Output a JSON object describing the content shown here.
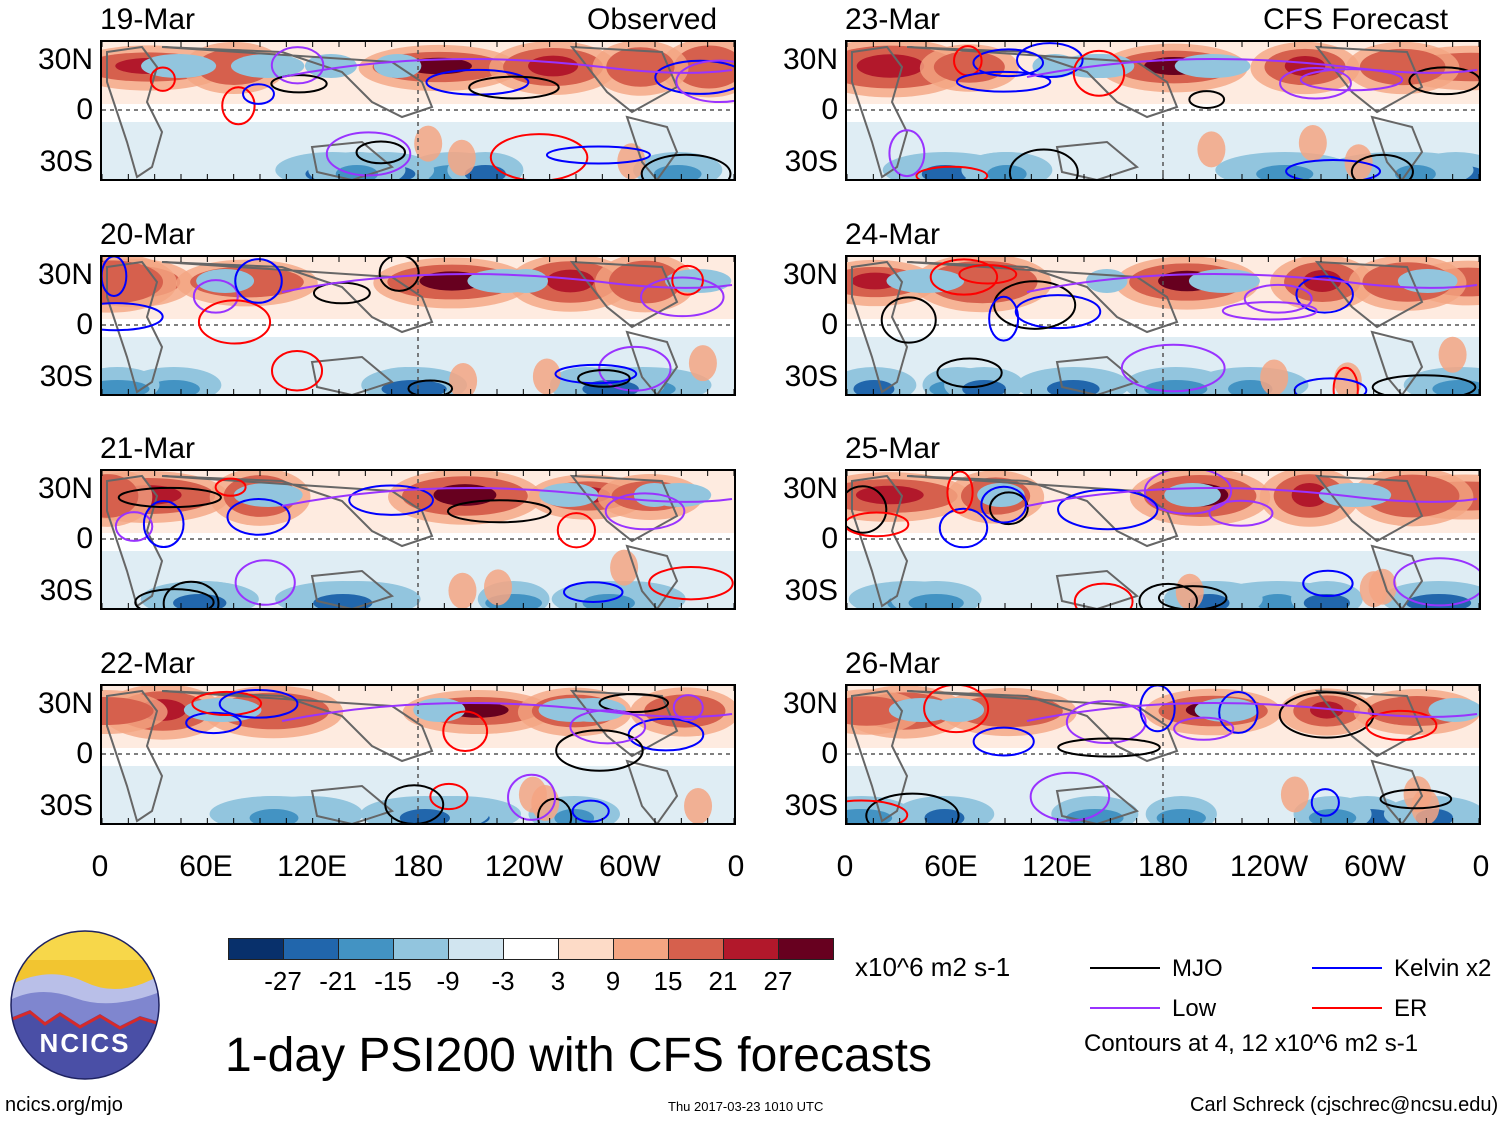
{
  "panels_left_header": "Observed",
  "panels_right_header": "CFS Forecast",
  "panels": [
    {
      "date": "19-Mar",
      "col": 0,
      "row": 0
    },
    {
      "date": "20-Mar",
      "col": 0,
      "row": 1
    },
    {
      "date": "21-Mar",
      "col": 0,
      "row": 2
    },
    {
      "date": "22-Mar",
      "col": 0,
      "row": 3
    },
    {
      "date": "23-Mar",
      "col": 1,
      "row": 0
    },
    {
      "date": "24-Mar",
      "col": 1,
      "row": 1
    },
    {
      "date": "25-Mar",
      "col": 1,
      "row": 2
    },
    {
      "date": "26-Mar",
      "col": 1,
      "row": 3
    }
  ],
  "lat_labels": [
    "30N",
    "0",
    "30S"
  ],
  "lon_labels": [
    "0",
    "60E",
    "120E",
    "180",
    "120W",
    "60W",
    "0"
  ],
  "colorbar": {
    "colors": [
      "#08306b",
      "#2166ac",
      "#4393c3",
      "#92c5de",
      "#d1e5f0",
      "#ffffff",
      "#fddbc7",
      "#f4a582",
      "#d6604d",
      "#b2182b",
      "#67001f"
    ],
    "labels": [
      "-27",
      "-21",
      "-15",
      "-9",
      "-3",
      "3",
      "9",
      "15",
      "21",
      "27"
    ],
    "units": "x10^6 m2 s-1"
  },
  "legend": {
    "items": [
      {
        "label": "MJO",
        "color": "#000000"
      },
      {
        "label": "Kelvin x2",
        "color": "#0000ff"
      },
      {
        "label": "Low",
        "color": "#9933ff"
      },
      {
        "label": "ER",
        "color": "#ff0000"
      }
    ],
    "contour_note": "Contours at 4, 12 x10^6 m2 s-1"
  },
  "logo_text": "NCICS",
  "main_title": "1-day PSI200 with CFS forecasts",
  "footer": {
    "left": "ncics.org/mjo",
    "center": "Thu 2017-03-23 1010 UTC",
    "right": "Carl Schreck (cjschrec@ncsu.edu)"
  }
}
